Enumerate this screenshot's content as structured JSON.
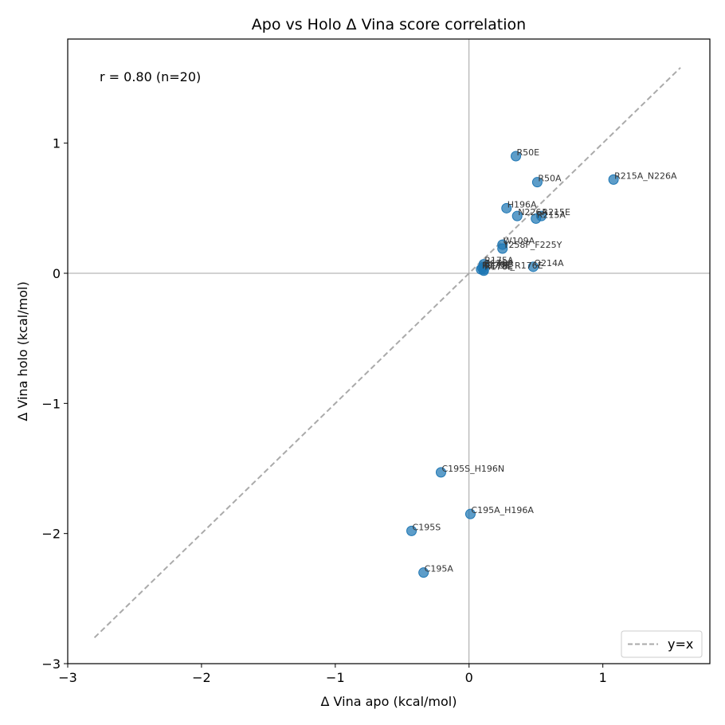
{
  "chart_data": {
    "type": "scatter",
    "title": "Apo vs Holo Δ Vina score correlation",
    "xlabel": "Δ Vina apo (kcal/mol)",
    "ylabel": "Δ Vina holo (kcal/mol)",
    "xlim": [
      -3.0,
      1.8
    ],
    "ylim": [
      -3.0,
      1.8
    ],
    "xticks": [
      -3,
      -2,
      -1,
      0,
      1
    ],
    "yticks": [
      -3,
      -2,
      -1,
      0,
      1
    ],
    "xtick_labels": [
      "−3",
      "−2",
      "−1",
      "0",
      "1"
    ],
    "ytick_labels": [
      "−3",
      "−2",
      "−1",
      "0",
      "1"
    ],
    "annotation": "r = 0.80 (n=20)",
    "reference_line": {
      "label": "y=x",
      "from": [
        -2.8,
        -2.8
      ],
      "to": [
        1.58,
        1.58
      ],
      "color": "#aaaaaa",
      "style": "dashed"
    },
    "zero_lines": true,
    "grid": false,
    "legend": {
      "position": "bottom-right",
      "entries": [
        "y=x"
      ]
    },
    "marker_color": "#1f77b4",
    "points": [
      {
        "label": "R50E",
        "x": 0.35,
        "y": 0.9
      },
      {
        "label": "R50A",
        "x": 0.51,
        "y": 0.7
      },
      {
        "label": "R215A_N226A",
        "x": 1.08,
        "y": 0.72
      },
      {
        "label": "H196A",
        "x": 0.28,
        "y": 0.5
      },
      {
        "label": "N226A",
        "x": 0.36,
        "y": 0.44
      },
      {
        "label": "R215E",
        "x": 0.54,
        "y": 0.44
      },
      {
        "label": "R215A",
        "x": 0.5,
        "y": 0.42
      },
      {
        "label": "W109A",
        "x": 0.25,
        "y": 0.22
      },
      {
        "label": "Y258F_F225Y",
        "x": 0.25,
        "y": 0.19
      },
      {
        "label": "R175A",
        "x": 0.11,
        "y": 0.07
      },
      {
        "label": "Q214A",
        "x": 0.48,
        "y": 0.05
      },
      {
        "label": "R176A",
        "x": 0.11,
        "y": 0.05
      },
      {
        "label": "K178E",
        "x": 0.1,
        "y": 0.04
      },
      {
        "label": "R175E",
        "x": 0.11,
        "y": 0.03
      },
      {
        "label": "R176E",
        "x": 0.11,
        "y": 0.02
      },
      {
        "label": "R175E_R176E",
        "x": 0.09,
        "y": 0.03
      },
      {
        "label": "C195S_H196N",
        "x": -0.21,
        "y": -1.53
      },
      {
        "label": "C195A_H196A",
        "x": 0.01,
        "y": -1.85
      },
      {
        "label": "C195S",
        "x": -0.43,
        "y": -1.98
      },
      {
        "label": "C195A",
        "x": -0.34,
        "y": -2.3
      }
    ]
  }
}
